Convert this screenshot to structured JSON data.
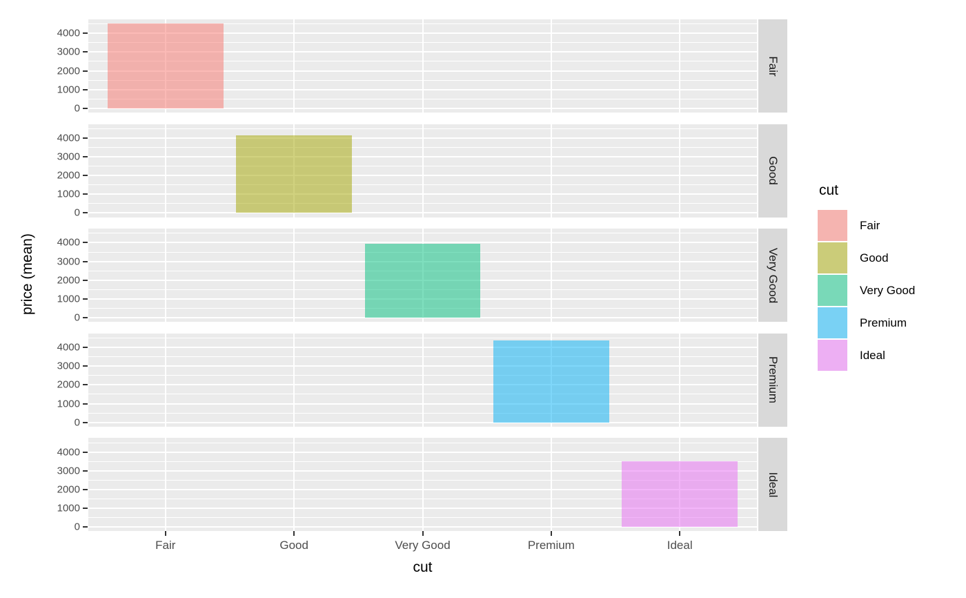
{
  "chart_data": {
    "type": "bar",
    "title": "",
    "xlabel": "cut",
    "ylabel": "price (mean)",
    "facet_layout": "rows",
    "facet_variable": "cut",
    "categories": [
      "Fair",
      "Good",
      "Very Good",
      "Premium",
      "Ideal"
    ],
    "values": [
      4520,
      4130,
      3940,
      4360,
      3490
    ],
    "facets": [
      {
        "strip_label": "Fair",
        "category": "Fair",
        "value": 4520,
        "color": "#F8766D"
      },
      {
        "strip_label": "Good",
        "category": "Good",
        "value": 4130,
        "color": "#A3A500"
      },
      {
        "strip_label": "Very Good",
        "category": "Very Good",
        "value": 3940,
        "color": "#00BF7D"
      },
      {
        "strip_label": "Premium",
        "category": "Premium",
        "value": 4360,
        "color": "#00B0F6"
      },
      {
        "strip_label": "Ideal",
        "category": "Ideal",
        "value": 3490,
        "color": "#E76BF3"
      }
    ],
    "y_ticks": [
      0,
      1000,
      2000,
      3000,
      4000
    ],
    "y_minor_gridlines": [
      500,
      1500,
      2500,
      3500,
      4500
    ],
    "ylim_display": [
      -226,
      4746
    ],
    "bar_width_fraction": 0.9,
    "fill_alpha": 0.5,
    "grid": true,
    "legend": {
      "title": "cut",
      "position": "right",
      "entries": [
        {
          "label": "Fair",
          "color": "#F8766D"
        },
        {
          "label": "Good",
          "color": "#A3A500"
        },
        {
          "label": "Very Good",
          "color": "#00BF7D"
        },
        {
          "label": "Premium",
          "color": "#00B0F6"
        },
        {
          "label": "Ideal",
          "color": "#E76BF3"
        }
      ]
    }
  },
  "style_colors": {
    "figure_background": "#FFFFFF",
    "panel_background": "#EBEBEB",
    "strip_background": "#D9D9D9",
    "gridline": "#FFFFFF",
    "tick_label": "#4D4D4D",
    "axis_title": "#000000",
    "strip_text": "#1A1A1A",
    "tick_mark": "#333333",
    "legend_key_background": "#F2F2F2"
  }
}
